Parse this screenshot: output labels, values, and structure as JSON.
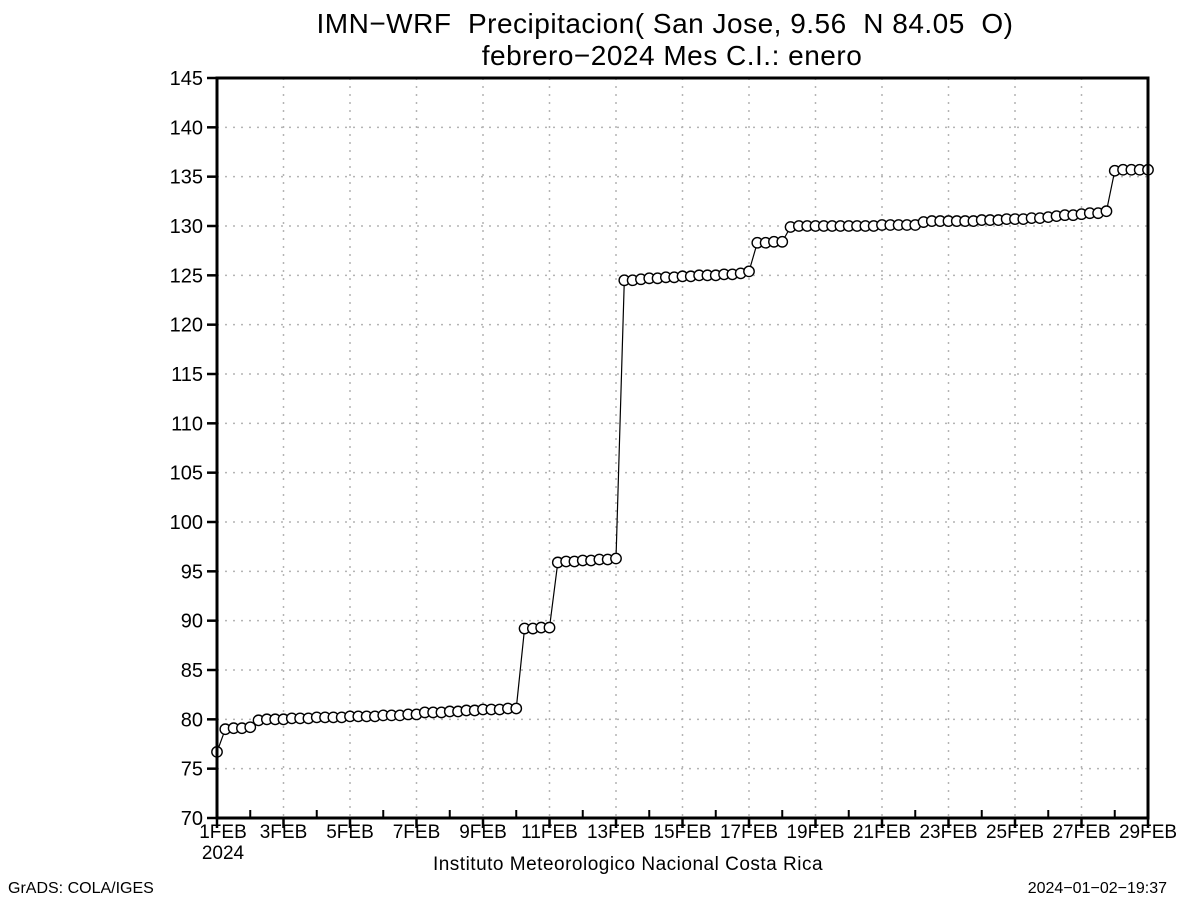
{
  "title": {
    "line1": "IMN−WRF  Precipitacion( San Jose, 9.56  N 84.05  O)",
    "line2": "febrero−2024 Mes C.I.: enero"
  },
  "footer": {
    "center": "Instituto Meteorologico Nacional Costa Rica",
    "left": "GrADS: COLA/IGES",
    "right": "2024−01−02−19:37"
  },
  "chart_data": {
    "type": "line",
    "title": "IMN-WRF Precipitacion( San Jose, 9.56 N 84.05 O)",
    "subtitle": "febrero-2024 Mes C.I.: enero",
    "xlabel": "",
    "ylabel": "",
    "ylim": [
      70,
      145
    ],
    "ytick_step": 5,
    "ytick_labels": [
      "70",
      "75",
      "80",
      "85",
      "90",
      "95",
      "100",
      "105",
      "110",
      "115",
      "120",
      "125",
      "130",
      "135",
      "140",
      "145"
    ],
    "xtick_labels": [
      "1FEB",
      "3FEB",
      "5FEB",
      "7FEB",
      "9FEB",
      "11FEB",
      "13FEB",
      "15FEB",
      "17FEB",
      "19FEB",
      "21FEB",
      "23FEB",
      "25FEB",
      "27FEB",
      "29FEB"
    ],
    "year_label": "2024",
    "x_days": 28,
    "points_per_day": 4,
    "marker": "open-circle",
    "marker_radius": 5.2,
    "line_color": "#000000",
    "grid_color": "#b4b4b4",
    "grid_on": true,
    "legend": "none",
    "values": [
      76.7,
      79.0,
      79.1,
      79.1,
      79.2,
      79.9,
      80.0,
      80.0,
      80.0,
      80.1,
      80.1,
      80.1,
      80.2,
      80.2,
      80.2,
      80.2,
      80.3,
      80.3,
      80.3,
      80.3,
      80.4,
      80.4,
      80.4,
      80.5,
      80.5,
      80.7,
      80.7,
      80.7,
      80.8,
      80.8,
      80.9,
      80.9,
      81.0,
      81.0,
      81.0,
      81.1,
      81.1,
      89.2,
      89.2,
      89.3,
      89.3,
      95.9,
      96.0,
      96.0,
      96.1,
      96.1,
      96.2,
      96.2,
      96.3,
      124.5,
      124.5,
      124.6,
      124.7,
      124.7,
      124.8,
      124.8,
      124.9,
      124.9,
      125.0,
      125.0,
      125.0,
      125.1,
      125.1,
      125.2,
      125.4,
      128.3,
      128.3,
      128.4,
      128.4,
      129.9,
      130.0,
      130.0,
      130.0,
      130.0,
      130.0,
      130.0,
      130.0,
      130.0,
      130.0,
      130.0,
      130.1,
      130.1,
      130.1,
      130.1,
      130.1,
      130.4,
      130.5,
      130.5,
      130.5,
      130.5,
      130.5,
      130.5,
      130.6,
      130.6,
      130.6,
      130.7,
      130.7,
      130.7,
      130.8,
      130.8,
      130.9,
      131.0,
      131.1,
      131.1,
      131.2,
      131.3,
      131.3,
      131.5,
      135.6,
      135.7,
      135.7,
      135.7,
      135.7
    ]
  }
}
